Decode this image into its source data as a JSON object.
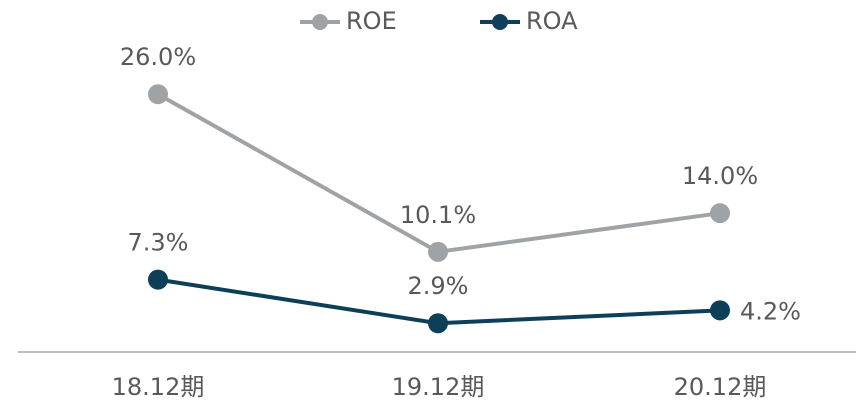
{
  "chart_data": {
    "type": "line",
    "categories": [
      "18.12期",
      "19.12期",
      "20.12期"
    ],
    "series": [
      {
        "name": "ROE",
        "color": "#a0a3a5",
        "values": [
          26.0,
          10.1,
          14.0
        ],
        "value_labels": [
          "26.0%",
          "10.1%",
          "14.0%"
        ]
      },
      {
        "name": "ROA",
        "color": "#0d4058",
        "values": [
          7.3,
          2.9,
          4.2
        ],
        "value_labels": [
          "7.3%",
          "2.9%",
          "4.2%"
        ]
      }
    ],
    "ylim": [
      0,
      35.5
    ],
    "legend": "top"
  }
}
